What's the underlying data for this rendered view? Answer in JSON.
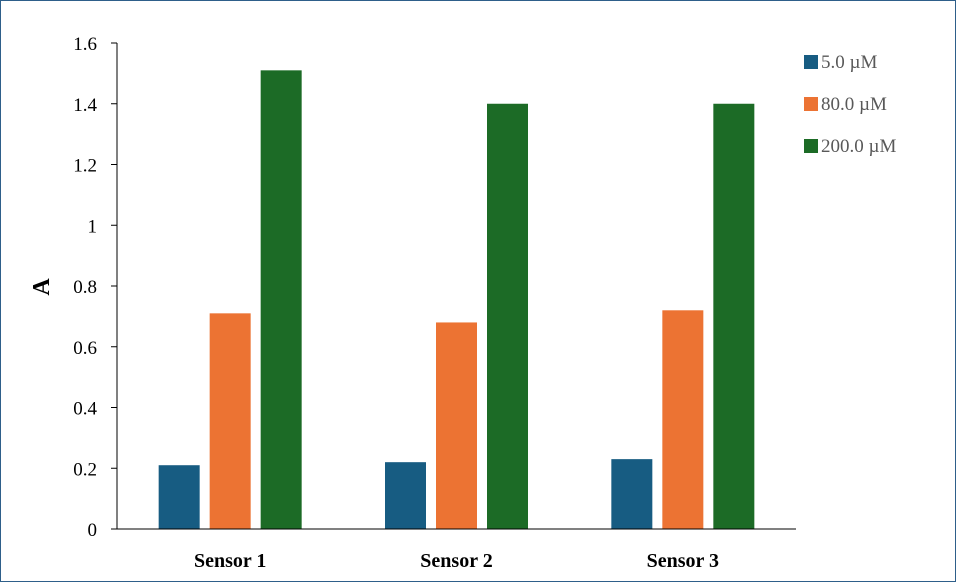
{
  "chart_data": {
    "type": "bar",
    "title": "",
    "xlabel": "",
    "ylabel": "A",
    "ylim": [
      0,
      1.6
    ],
    "yticks": [
      0,
      0.2,
      0.4,
      0.6,
      0.8,
      1,
      1.2,
      1.4,
      1.6
    ],
    "ytick_labels": [
      "0",
      "0.2",
      "0.4",
      "0.6",
      "0.8",
      "1",
      "1.2",
      "1.4",
      "1.6"
    ],
    "categories": [
      "Sensor 1",
      "Sensor 2",
      "Sensor 3"
    ],
    "series": [
      {
        "name": "5.0 µM",
        "color": "#175c82",
        "values": [
          0.21,
          0.22,
          0.23
        ]
      },
      {
        "name": "80.0 µM",
        "color": "#ec7333",
        "values": [
          0.71,
          0.68,
          0.72
        ]
      },
      {
        "name": "200.0 µM",
        "color": "#1c6b26",
        "values": [
          1.51,
          1.4,
          1.4
        ]
      }
    ],
    "grid": false,
    "legend_position": "top-right",
    "frame_color": "#2e5f8a",
    "axis_color": "#000000"
  }
}
